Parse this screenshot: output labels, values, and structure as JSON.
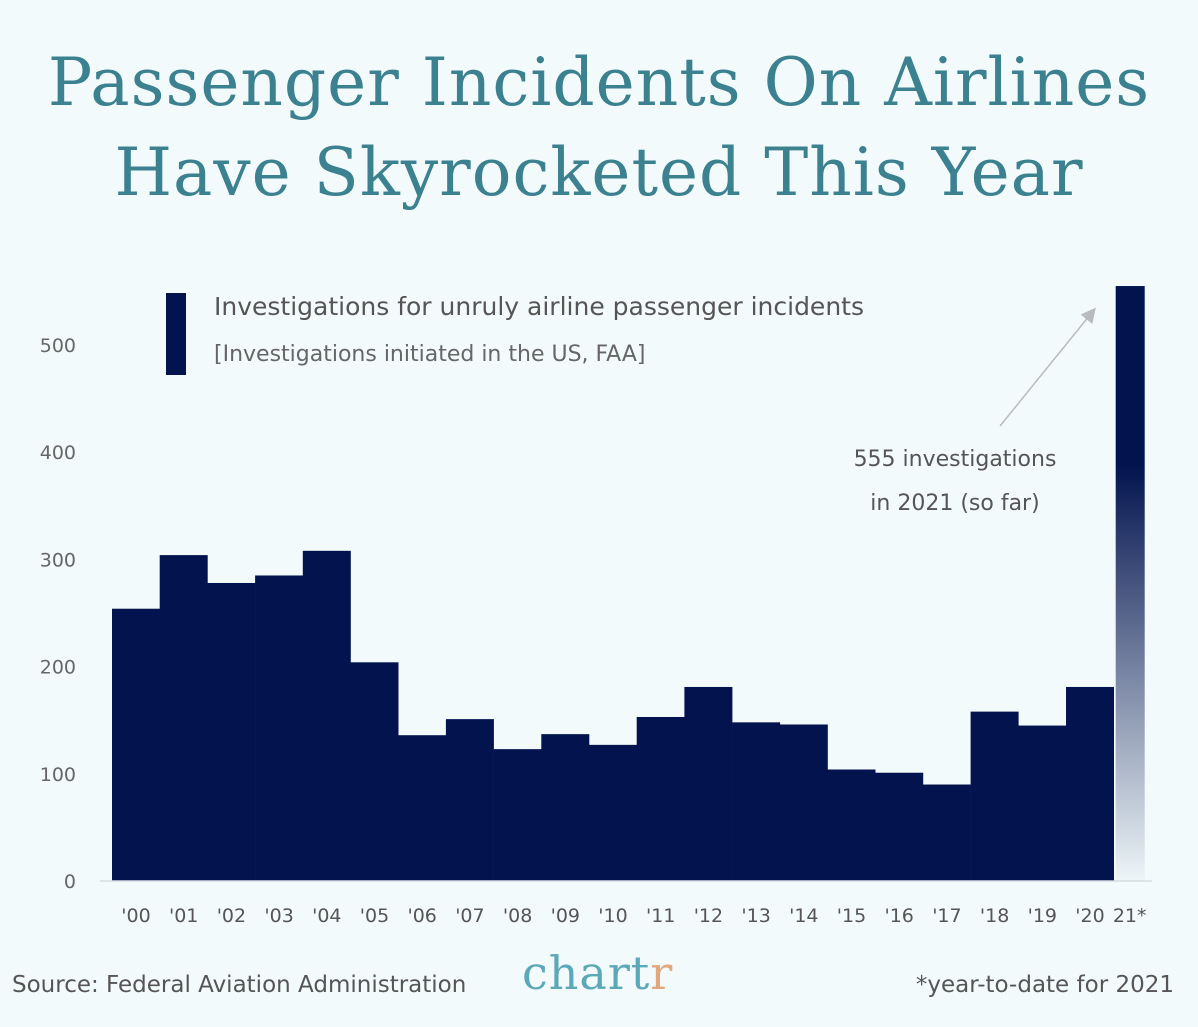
{
  "title_lines": [
    "Passenger Incidents On Airlines",
    "Have Skyrocketed This Year"
  ],
  "chart_data": {
    "type": "bar",
    "title": "Passenger Incidents On Airlines Have Skyrocketed This Year",
    "legend": {
      "label": "Investigations for unruly airline passenger incidents",
      "sublabel": "[Investigations initiated in the US, FAA]",
      "placement": "top-left"
    },
    "categories": [
      "'00",
      "'01",
      "'02",
      "'03",
      "'04",
      "'05",
      "'06",
      "'07",
      "'08",
      "'09",
      "'10",
      "'11",
      "'12",
      "'13",
      "'14",
      "'15",
      "'16",
      "'17",
      "'18",
      "'19",
      "'20",
      "21*"
    ],
    "values": [
      254,
      304,
      278,
      285,
      308,
      204,
      136,
      151,
      123,
      137,
      127,
      153,
      181,
      148,
      146,
      104,
      101,
      90,
      158,
      145,
      181,
      555
    ],
    "ylim": [
      0,
      560
    ],
    "yticks": [
      0,
      100,
      200,
      300,
      400,
      500
    ],
    "grid": false,
    "bar_color": "#02134e",
    "highlight": {
      "category": "21*",
      "style": "gradient-fade",
      "annotation_lines": [
        "555 investigations",
        "in 2021 (so far)"
      ]
    },
    "xlabel": "",
    "ylabel": ""
  },
  "footer": {
    "source": "Source: Federal Aviation Administration",
    "footnote": "*year-to-date for 2021",
    "logo": "chartr"
  }
}
